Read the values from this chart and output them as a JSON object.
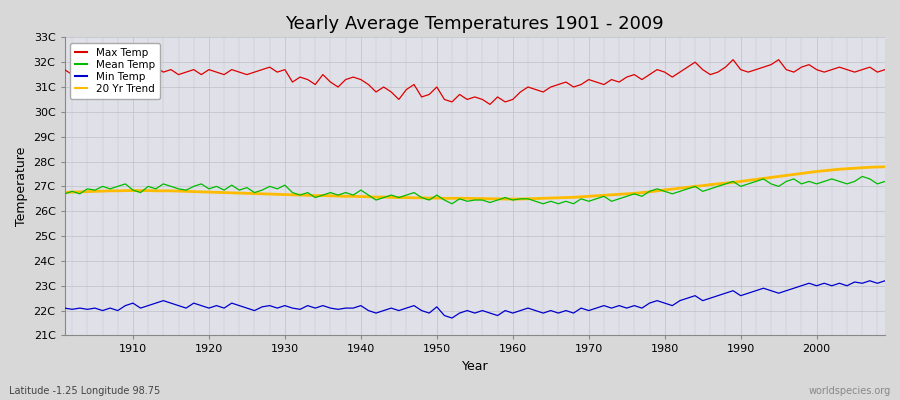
{
  "title": "Yearly Average Temperatures 1901 - 2009",
  "xlabel": "Year",
  "ylabel": "Temperature",
  "footnote_left": "Latitude -1.25 Longitude 98.75",
  "footnote_right": "worldspecies.org",
  "years_start": 1901,
  "years_end": 2009,
  "yticks": [
    21,
    22,
    23,
    24,
    25,
    26,
    27,
    28,
    29,
    30,
    31,
    32,
    33
  ],
  "ytick_labels": [
    "21C",
    "22C",
    "23C",
    "24C",
    "25C",
    "26C",
    "27C",
    "28C",
    "29C",
    "30C",
    "31C",
    "32C",
    "33C"
  ],
  "xticks": [
    1910,
    1920,
    1930,
    1940,
    1950,
    1960,
    1970,
    1980,
    1990,
    2000
  ],
  "ylim": [
    21,
    33
  ],
  "xlim": [
    1901,
    2009
  ],
  "legend": [
    {
      "label": "Max Temp",
      "color": "#dd0000"
    },
    {
      "label": "Mean Temp",
      "color": "#00bb00"
    },
    {
      "label": "Min Temp",
      "color": "#0000cc"
    },
    {
      "label": "20 Yr Trend",
      "color": "#ffbb00"
    }
  ],
  "background_color": "#d8d8d8",
  "plot_bg_color": "#e0e0e8",
  "grid_color": "#c0c0c8",
  "max_temp": [
    31.7,
    31.5,
    31.9,
    31.6,
    31.8,
    31.7,
    31.5,
    31.8,
    31.6,
    31.4,
    31.5,
    31.7,
    31.8,
    31.6,
    31.7,
    31.5,
    31.6,
    31.7,
    31.5,
    31.7,
    31.6,
    31.5,
    31.7,
    31.6,
    31.5,
    31.6,
    31.7,
    31.8,
    31.6,
    31.7,
    31.2,
    31.4,
    31.3,
    31.1,
    31.5,
    31.2,
    31.0,
    31.3,
    31.4,
    31.3,
    31.1,
    30.8,
    31.0,
    30.8,
    30.5,
    30.9,
    31.1,
    30.6,
    30.7,
    31.0,
    30.5,
    30.4,
    30.7,
    30.5,
    30.6,
    30.5,
    30.3,
    30.6,
    30.4,
    30.5,
    30.8,
    31.0,
    30.9,
    30.8,
    31.0,
    31.1,
    31.2,
    31.0,
    31.1,
    31.3,
    31.2,
    31.1,
    31.3,
    31.2,
    31.4,
    31.5,
    31.3,
    31.5,
    31.7,
    31.6,
    31.4,
    31.6,
    31.8,
    32.0,
    31.7,
    31.5,
    31.6,
    31.8,
    32.1,
    31.7,
    31.6,
    31.7,
    31.8,
    31.9,
    32.1,
    31.7,
    31.6,
    31.8,
    31.9,
    31.7,
    31.6,
    31.7,
    31.8,
    31.7,
    31.6,
    31.7,
    31.8,
    31.6,
    31.7
  ],
  "mean_temp": [
    26.7,
    26.8,
    26.7,
    26.9,
    26.85,
    27.0,
    26.9,
    27.0,
    27.1,
    26.85,
    26.75,
    27.0,
    26.9,
    27.1,
    27.0,
    26.9,
    26.85,
    27.0,
    27.1,
    26.9,
    27.0,
    26.85,
    27.05,
    26.85,
    26.95,
    26.75,
    26.85,
    27.0,
    26.9,
    27.05,
    26.75,
    26.65,
    26.75,
    26.55,
    26.65,
    26.75,
    26.65,
    26.75,
    26.65,
    26.85,
    26.65,
    26.45,
    26.55,
    26.65,
    26.55,
    26.65,
    26.75,
    26.55,
    26.45,
    26.65,
    26.45,
    26.3,
    26.5,
    26.4,
    26.45,
    26.45,
    26.35,
    26.45,
    26.55,
    26.45,
    26.5,
    26.5,
    26.4,
    26.3,
    26.4,
    26.3,
    26.4,
    26.3,
    26.5,
    26.4,
    26.5,
    26.6,
    26.4,
    26.5,
    26.6,
    26.7,
    26.6,
    26.8,
    26.9,
    26.8,
    26.7,
    26.8,
    26.9,
    27.0,
    26.8,
    26.9,
    27.0,
    27.1,
    27.2,
    27.0,
    27.1,
    27.2,
    27.3,
    27.1,
    27.0,
    27.2,
    27.3,
    27.1,
    27.2,
    27.1,
    27.2,
    27.3,
    27.2,
    27.1,
    27.2,
    27.4,
    27.3,
    27.1,
    27.2
  ],
  "min_temp": [
    22.1,
    22.05,
    22.1,
    22.05,
    22.1,
    22.0,
    22.1,
    22.0,
    22.2,
    22.3,
    22.1,
    22.2,
    22.3,
    22.4,
    22.3,
    22.2,
    22.1,
    22.3,
    22.2,
    22.1,
    22.2,
    22.1,
    22.3,
    22.2,
    22.1,
    22.0,
    22.15,
    22.2,
    22.1,
    22.2,
    22.1,
    22.05,
    22.2,
    22.1,
    22.2,
    22.1,
    22.05,
    22.1,
    22.1,
    22.2,
    22.0,
    21.9,
    22.0,
    22.1,
    22.0,
    22.1,
    22.2,
    22.0,
    21.9,
    22.15,
    21.8,
    21.7,
    21.9,
    22.0,
    21.9,
    22.0,
    21.9,
    21.8,
    22.0,
    21.9,
    22.0,
    22.1,
    22.0,
    21.9,
    22.0,
    21.9,
    22.0,
    21.9,
    22.1,
    22.0,
    22.1,
    22.2,
    22.1,
    22.2,
    22.1,
    22.2,
    22.1,
    22.3,
    22.4,
    22.3,
    22.2,
    22.4,
    22.5,
    22.6,
    22.4,
    22.5,
    22.6,
    22.7,
    22.8,
    22.6,
    22.7,
    22.8,
    22.9,
    22.8,
    22.7,
    22.8,
    22.9,
    23.0,
    23.1,
    23.0,
    23.1,
    23.0,
    23.1,
    23.0,
    23.15,
    23.1,
    23.2,
    23.1,
    23.2
  ],
  "trend_20yr": [
    26.75,
    26.77,
    26.78,
    26.79,
    26.8,
    26.81,
    26.82,
    26.82,
    26.83,
    26.83,
    26.83,
    26.83,
    26.82,
    26.82,
    26.82,
    26.81,
    26.8,
    26.79,
    26.78,
    26.77,
    26.76,
    26.75,
    26.74,
    26.73,
    26.72,
    26.71,
    26.7,
    26.69,
    26.68,
    26.67,
    26.66,
    26.65,
    26.64,
    26.63,
    26.63,
    26.62,
    26.61,
    26.6,
    26.6,
    26.59,
    26.58,
    26.57,
    26.57,
    26.56,
    26.55,
    26.55,
    26.54,
    26.54,
    26.53,
    26.53,
    26.52,
    26.52,
    26.52,
    26.52,
    26.51,
    26.51,
    26.5,
    26.5,
    26.49,
    26.49,
    26.49,
    26.5,
    26.51,
    26.52,
    26.53,
    26.54,
    26.55,
    26.56,
    26.58,
    26.6,
    26.62,
    26.64,
    26.66,
    26.68,
    26.7,
    26.72,
    26.75,
    26.78,
    26.82,
    26.86,
    26.89,
    26.93,
    26.96,
    27.0,
    27.03,
    27.07,
    27.1,
    27.13,
    27.16,
    27.2,
    27.24,
    27.28,
    27.32,
    27.36,
    27.4,
    27.44,
    27.48,
    27.52,
    27.56,
    27.6,
    27.63,
    27.66,
    27.69,
    27.71,
    27.73,
    27.75,
    27.77,
    27.78,
    27.79
  ]
}
